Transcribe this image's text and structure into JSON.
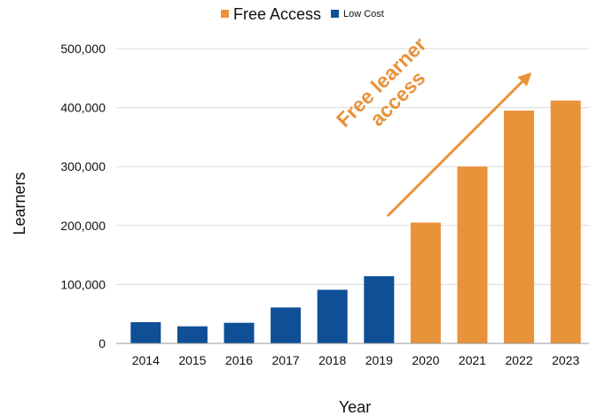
{
  "chart_data": {
    "type": "bar",
    "title": "",
    "xlabel": "Year",
    "ylabel": "Learners",
    "ylim": [
      0,
      500000
    ],
    "y_ticks": [
      0,
      100000,
      200000,
      300000,
      400000,
      500000
    ],
    "y_tick_labels": [
      "0",
      "100,000",
      "200,000",
      "300,000",
      "400,000",
      "500,000"
    ],
    "categories": [
      "2014",
      "2015",
      "2016",
      "2017",
      "2018",
      "2019",
      "2020",
      "2021",
      "2022",
      "2023"
    ],
    "values": [
      36000,
      29000,
      35000,
      61000,
      91000,
      114000,
      205000,
      300000,
      395000,
      412000
    ],
    "bar_series": [
      "Low Cost",
      "Low Cost",
      "Low Cost",
      "Low Cost",
      "Low Cost",
      "Low Cost",
      "Free Access",
      "Free Access",
      "Free Access",
      "Free Access"
    ],
    "series": [
      {
        "name": "Free Access",
        "color": "#E8923A"
      },
      {
        "name": "Low Cost",
        "color": "#0E4F96"
      }
    ],
    "legend_position": "top-center",
    "grid": "horizontal",
    "annotation": {
      "lines": [
        "Free learner",
        "access"
      ],
      "color": "#E8923A",
      "arrow": true
    }
  }
}
